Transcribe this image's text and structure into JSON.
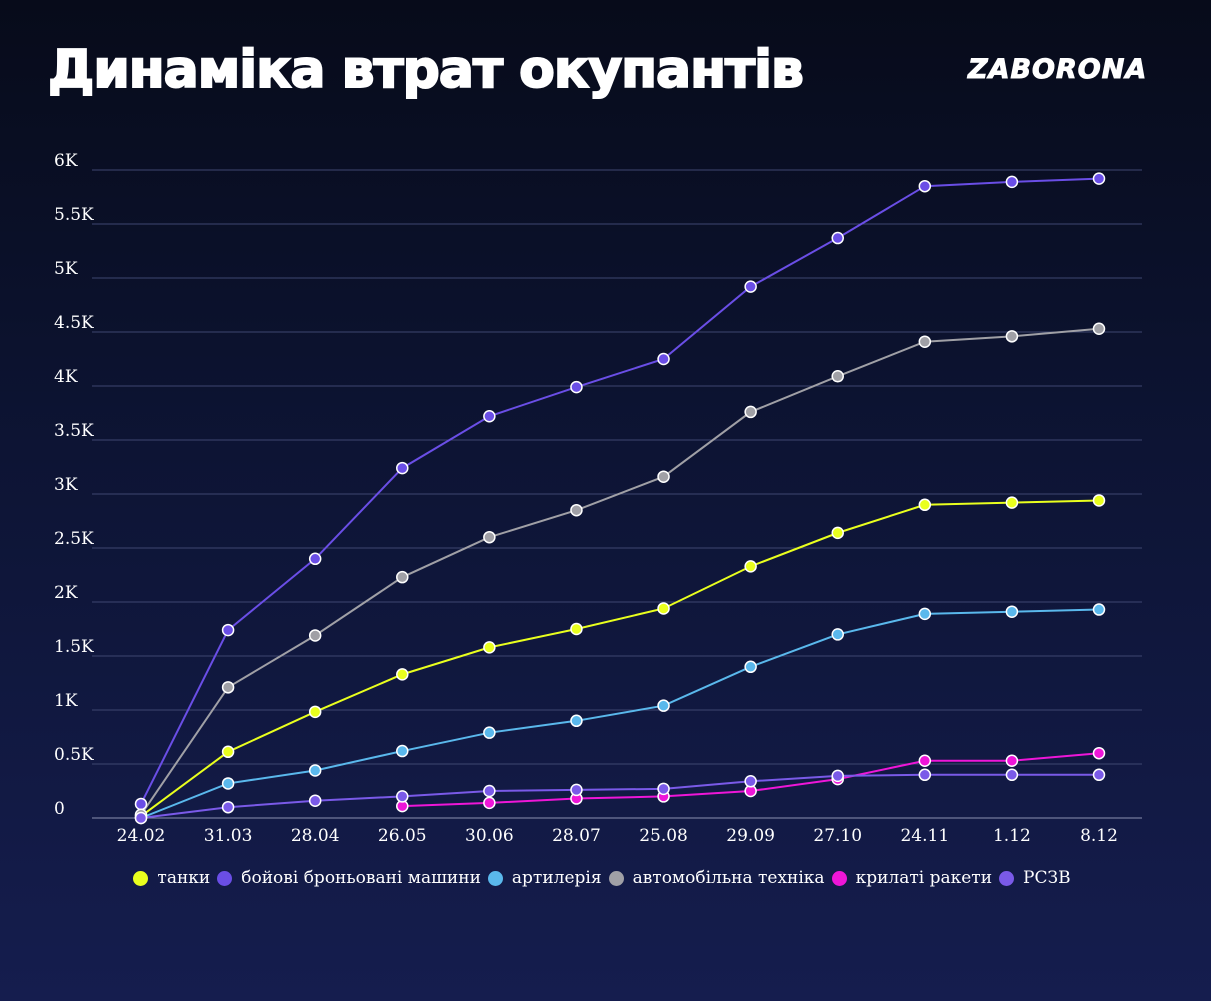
{
  "header": {
    "title": "Динаміка втрат окупантів",
    "brand": "ZABORONA"
  },
  "chart_data": {
    "type": "line",
    "title": "Динаміка втрат окупантів",
    "xlabel": "",
    "ylabel": "",
    "categories": [
      "24.02",
      "31.03",
      "28.04",
      "26.05",
      "30.06",
      "28.07",
      "25.08",
      "29.09",
      "27.10",
      "24.11",
      "1.12",
      "8.12"
    ],
    "ylim": [
      0,
      6000
    ],
    "yticks": [
      0,
      500,
      1000,
      1500,
      2000,
      2500,
      3000,
      3500,
      4000,
      4500,
      5000,
      5500,
      6000
    ],
    "ytick_labels": [
      "0",
      "0.5K",
      "1K",
      "1.5K",
      "2K",
      "2.5K",
      "3K",
      "3.5K",
      "4K",
      "4.5K",
      "5K",
      "5.5K",
      "6K"
    ],
    "grid": true,
    "legend_position": "bottom",
    "series": [
      {
        "name": "танки",
        "color": "#e9ff1e",
        "values": [
          17,
          613,
          983,
          1330,
          1580,
          1750,
          1940,
          2330,
          2640,
          2900,
          2920,
          2940
        ]
      },
      {
        "name": "бойові броньовані машини",
        "color": "#6a4ee6",
        "values": [
          130,
          1740,
          2400,
          3240,
          3720,
          3990,
          4250,
          4920,
          5370,
          5850,
          5890,
          5920
        ]
      },
      {
        "name": "артилерія",
        "color": "#5ab8ec",
        "values": [
          0,
          320,
          440,
          620,
          790,
          900,
          1040,
          1400,
          1700,
          1890,
          1910,
          1930
        ]
      },
      {
        "name": "автомобільна техніка",
        "color": "#a0a0a6",
        "values": [
          30,
          1210,
          1690,
          2230,
          2600,
          2850,
          3160,
          3760,
          4090,
          4410,
          4460,
          4530
        ]
      },
      {
        "name": "крилаті ракети",
        "color": "#ee16d8",
        "values": [
          null,
          null,
          null,
          110,
          140,
          180,
          200,
          250,
          360,
          530,
          530,
          600
        ]
      },
      {
        "name": "РСЗВ",
        "color": "#7a5ae8",
        "values": [
          0,
          100,
          160,
          200,
          250,
          260,
          270,
          340,
          390,
          400,
          400,
          400
        ]
      }
    ]
  }
}
